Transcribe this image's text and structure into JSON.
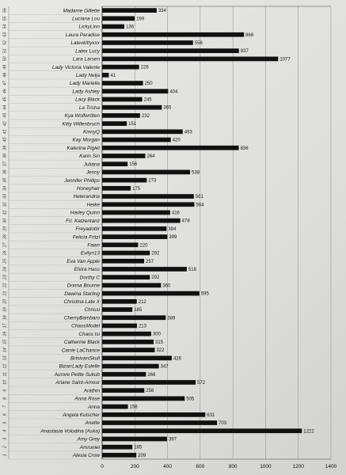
{
  "chart_data": {
    "type": "bar",
    "orientation": "horizontal",
    "categories": [
      "Madame Gillette",
      "Luciana Lou",
      "LickyLinn",
      "Laura Paradise",
      "Latexkittyxxx",
      "Latex Lucy",
      "Lara Larsen",
      "Lady Victoria Valente",
      "Lady Nelja",
      "Lady Mariella",
      "Lady Ashley",
      "Lacy Black",
      "La Trisha",
      "Kya Wolfwritten",
      "Kitty Willenbruch",
      "KinnyQ",
      "Kay Morgan",
      "Katerina Piglet",
      "Karin Sin",
      "Juliana",
      "Jenny",
      "Jennifer Phillips",
      "Honeyhair",
      "Heterandria",
      "Heike",
      "Harley Quinn",
      "Frl. Katzentanz",
      "Freyadottir",
      "Felicia Fritzl",
      "Fawn",
      "Evilyn13",
      "Eva Van Apple",
      "Elvira Hass",
      "Dorthy C",
      "Donna Bourne",
      "Dawina Starling",
      "Christina Late X",
      "Chrissi",
      "CherryBambaro",
      "ChaosModel",
      "Chaos Isi",
      "Catherine Black",
      "Carrie LaChance",
      "BrinivanSkull",
      "BizarrLady Estelle",
      "Aurore Petite Sukub",
      "Ariane Saint-Amour",
      "Arathin",
      "Anna Rose",
      "Anna",
      "Angela Kutscher",
      "Anette",
      "Anastasia Volodina (Aska)",
      "Amy Grey",
      "Amruniel",
      "Alesia Crow"
    ],
    "row_numbers": [
      "56",
      "55",
      "54",
      "53",
      "52",
      "51",
      "50",
      "49",
      "48",
      "47",
      "46",
      "45",
      "44",
      "43",
      "42",
      "41",
      "40",
      "39",
      "38",
      "37",
      "36",
      "35",
      "34",
      "33",
      "32",
      "31",
      "30",
      "29",
      "28",
      "27",
      "26",
      "25",
      "24",
      "23",
      "22",
      "21",
      "20",
      "19",
      "18",
      "17",
      "16",
      "15",
      "14",
      "13",
      "12",
      "11",
      "10",
      "9",
      "8",
      "7",
      "6",
      "5",
      "4",
      "3",
      "2",
      "1"
    ],
    "values": [
      334,
      199,
      136,
      868,
      556,
      837,
      1077,
      226,
      41,
      250,
      404,
      245,
      365,
      232,
      151,
      493,
      420,
      836,
      264,
      156,
      538,
      273,
      175,
      561,
      564,
      416,
      478,
      394,
      399,
      220,
      292,
      257,
      518,
      292,
      360,
      595,
      212,
      185,
      389,
      213,
      300,
      315,
      322,
      426,
      347,
      268,
      572,
      258,
      505,
      158,
      631,
      703,
      1222,
      397,
      185,
      209
    ],
    "xlim": [
      0,
      1400
    ],
    "xticks": [
      "0",
      "200",
      "400",
      "600",
      "800",
      "1000",
      "1200",
      "1400"
    ],
    "grid": true,
    "bar_color": "#111111",
    "title": "",
    "xlabel": "",
    "ylabel": ""
  }
}
